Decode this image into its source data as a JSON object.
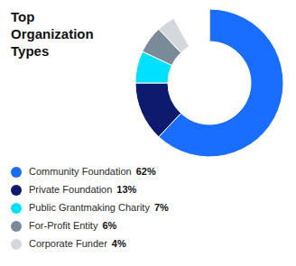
{
  "chart_data": {
    "type": "pie",
    "title": "Top\nOrganization\nTypes",
    "categories": [
      "Community Foundation",
      "Private Foundation",
      "Public Grantmaking Charity",
      "For-Profit Entity",
      "Corporate Funder",
      null
    ],
    "values": [
      62,
      13,
      7,
      6,
      4,
      8
    ],
    "value_labels": [
      "62%",
      "13%",
      "7%",
      "6%",
      "4%",
      null
    ],
    "colors": [
      "#1a6eff",
      "#0d1b6e",
      "#00e0ff",
      "#7a8a99",
      "#d4d8dd",
      "#ffffff"
    ],
    "legend": "bottom"
  }
}
